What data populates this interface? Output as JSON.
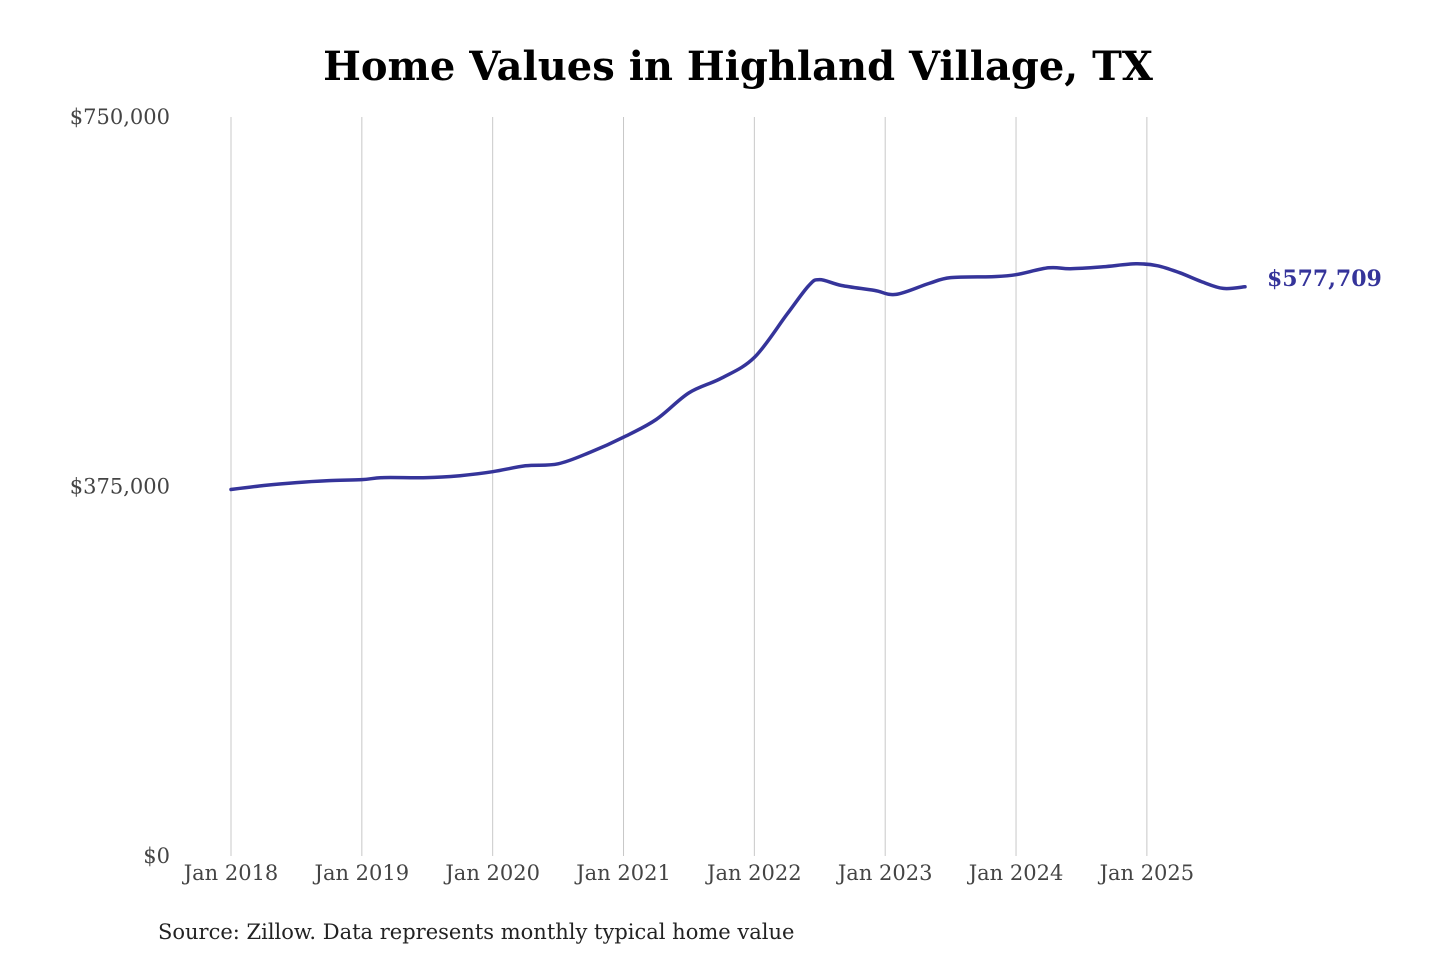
{
  "chart_data": {
    "type": "line",
    "title": "Home Values in Highland Village, TX",
    "source": "Source: Zillow. Data represents monthly typical home value",
    "xlabel": "",
    "ylabel": "",
    "ylim": [
      0,
      750000
    ],
    "y_ticks": [
      {
        "value": 0,
        "label": "$0"
      },
      {
        "value": 375000,
        "label": "$375,000"
      },
      {
        "value": 750000,
        "label": "$750,000"
      }
    ],
    "x_range": [
      "2018-01",
      "2025-10"
    ],
    "x_ticks": [
      {
        "date": "2018-01",
        "label": "Jan 2018"
      },
      {
        "date": "2019-01",
        "label": "Jan 2019"
      },
      {
        "date": "2020-01",
        "label": "Jan 2020"
      },
      {
        "date": "2021-01",
        "label": "Jan 2021"
      },
      {
        "date": "2022-01",
        "label": "Jan 2022"
      },
      {
        "date": "2023-01",
        "label": "Jan 2023"
      },
      {
        "date": "2024-01",
        "label": "Jan 2024"
      },
      {
        "date": "2025-01",
        "label": "Jan 2025"
      }
    ],
    "vertical_gridlines": true,
    "horizontal_gridlines": false,
    "line_color": "#35349a",
    "end_label": "$577,709",
    "series": [
      {
        "points": [
          {
            "x": "2018-01",
            "y": 372000
          },
          {
            "x": "2018-04",
            "y": 376000
          },
          {
            "x": "2018-07",
            "y": 379000
          },
          {
            "x": "2018-10",
            "y": 381000
          },
          {
            "x": "2019-01",
            "y": 382000
          },
          {
            "x": "2019-03",
            "y": 384000
          },
          {
            "x": "2019-07",
            "y": 384000
          },
          {
            "x": "2019-10",
            "y": 386000
          },
          {
            "x": "2020-01",
            "y": 390000
          },
          {
            "x": "2020-04",
            "y": 396000
          },
          {
            "x": "2020-07",
            "y": 398000
          },
          {
            "x": "2020-10",
            "y": 410000
          },
          {
            "x": "2021-01",
            "y": 425000
          },
          {
            "x": "2021-04",
            "y": 443000
          },
          {
            "x": "2021-07",
            "y": 470000
          },
          {
            "x": "2021-10",
            "y": 485000
          },
          {
            "x": "2022-01",
            "y": 506000
          },
          {
            "x": "2022-04",
            "y": 550000
          },
          {
            "x": "2022-06",
            "y": 579000
          },
          {
            "x": "2022-07",
            "y": 585000
          },
          {
            "x": "2022-09",
            "y": 579000
          },
          {
            "x": "2022-12",
            "y": 574000
          },
          {
            "x": "2023-02",
            "y": 570000
          },
          {
            "x": "2023-05",
            "y": 581000
          },
          {
            "x": "2023-07",
            "y": 587000
          },
          {
            "x": "2023-11",
            "y": 588000
          },
          {
            "x": "2024-01",
            "y": 590000
          },
          {
            "x": "2024-04",
            "y": 597000
          },
          {
            "x": "2024-06",
            "y": 596000
          },
          {
            "x": "2024-09",
            "y": 598000
          },
          {
            "x": "2024-12",
            "y": 601000
          },
          {
            "x": "2025-02",
            "y": 599000
          },
          {
            "x": "2025-04",
            "y": 592000
          },
          {
            "x": "2025-06",
            "y": 583000
          },
          {
            "x": "2025-08",
            "y": 576000
          },
          {
            "x": "2025-10",
            "y": 577709
          }
        ]
      }
    ]
  }
}
